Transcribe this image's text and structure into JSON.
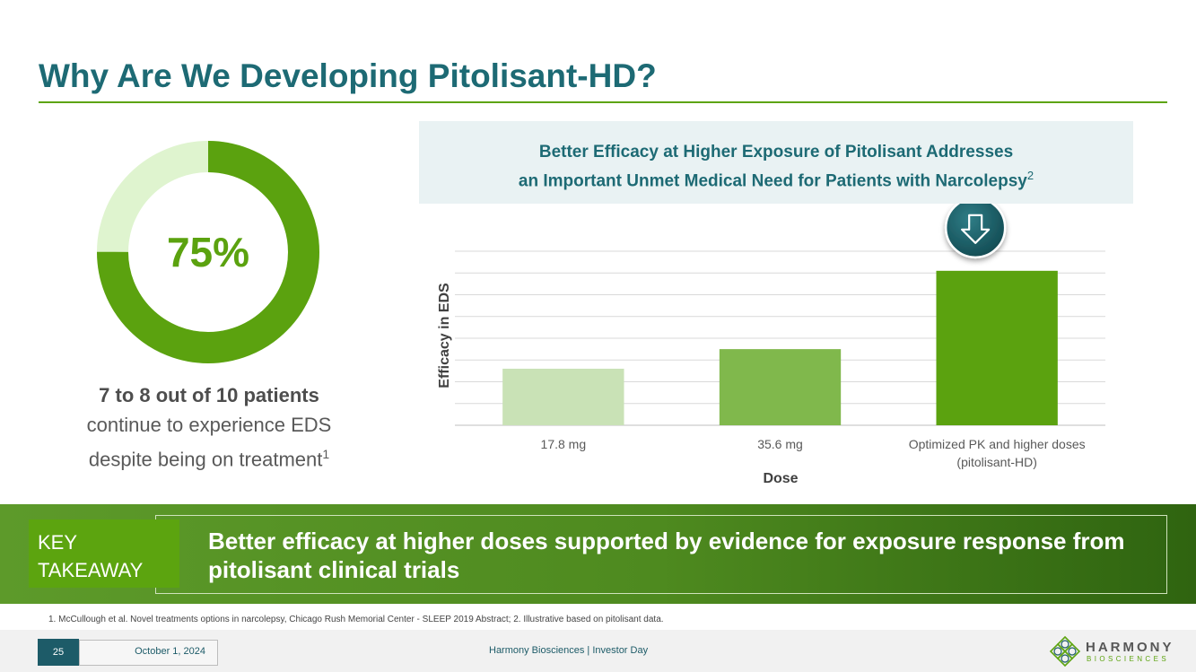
{
  "title": "Why Are We Developing Pitolisant-HD?",
  "stat": {
    "percent_label": "75%",
    "percent_value": 75,
    "headline": "7 to 8 out of 10 patients",
    "line2": "continue to experience EDS",
    "line3": "despite being on treatment",
    "footnote_ref": "1"
  },
  "chart_header": {
    "line1": "Better Efficacy at Higher Exposure of Pitolisant Addresses",
    "line2": "an Important Unmet Medical Need for Patients with Narcolepsy",
    "footnote_ref": "2"
  },
  "chart_data": {
    "type": "bar",
    "title": "",
    "xlabel": "Dose",
    "ylabel": "Efficacy in EDS",
    "categories": [
      "17.8 mg",
      "35.6 mg",
      "Optimized PK and higher doses (pitolisant-HD)"
    ],
    "category_lines": [
      [
        "17.8 mg"
      ],
      [
        "35.6 mg"
      ],
      [
        "Optimized PK and higher doses",
        "(pitolisant-HD)"
      ]
    ],
    "values": [
      2.6,
      3.5,
      7.1
    ],
    "ylim": [
      0,
      8
    ],
    "grid": true,
    "bar_colors": [
      "#c9e2b6",
      "#80b84c",
      "#5ba20f"
    ],
    "annotation": "down-arrow-badge"
  },
  "key_takeaway": {
    "label_line1": "KEY",
    "label_line2": "TAKEAWAY",
    "text": "Better efficacy at higher doses supported by evidence for exposure response from pitolisant clinical trials"
  },
  "footnote": "1. McCullough et al. Novel treatments options in narcolepsy, Chicago Rush Memorial Center - SLEEP 2019 Abstract; 2. Illustrative based on pitolisant data.",
  "footer": {
    "page_number": "25",
    "date": "October 1, 2024",
    "center_text": "Harmony Biosciences  |  Investor Day"
  },
  "logo": {
    "name": "HARMONY",
    "sub": "BIOSCIENCES"
  },
  "colors": {
    "primary_teal": "#1d6a74",
    "accent_green": "#5ba20f",
    "light_green": "#dff4cf"
  }
}
